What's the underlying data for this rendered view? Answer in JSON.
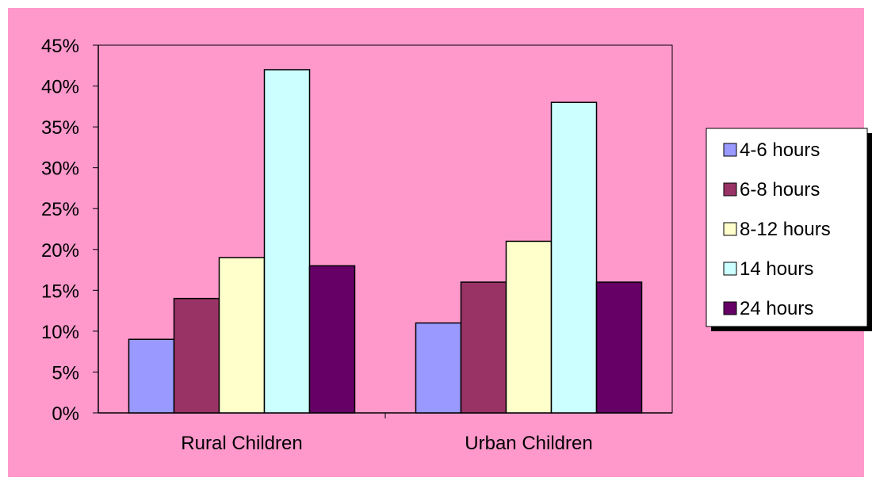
{
  "colors": {
    "chart_area": "#FF99CC",
    "plot_area": "#FF99CC",
    "legend_bg": "#FFFFFF",
    "axis": "#000000"
  },
  "legend": {
    "position": "right"
  },
  "chart_data": {
    "type": "bar",
    "categories": [
      "Rural Children",
      "Urban Children"
    ],
    "series": [
      {
        "name": "4-6 hours",
        "color": "#9999FF",
        "values": [
          9,
          11
        ]
      },
      {
        "name": "6-8 hours",
        "color": "#993366",
        "values": [
          14,
          16
        ]
      },
      {
        "name": "8-12 hours",
        "color": "#FFFFCC",
        "values": [
          19,
          21
        ]
      },
      {
        "name": "14 hours",
        "color": "#CCFFFF",
        "values": [
          42,
          38
        ]
      },
      {
        "name": "24 hours",
        "color": "#660066",
        "values": [
          18,
          16
        ]
      }
    ],
    "ylim": [
      0,
      45
    ],
    "yticks": [
      0,
      5,
      10,
      15,
      20,
      25,
      30,
      35,
      40,
      45
    ],
    "ytick_labels": [
      "0%",
      "5%",
      "10%",
      "15%",
      "20%",
      "25%",
      "30%",
      "35%",
      "40%",
      "45%"
    ],
    "grid": false,
    "title": "",
    "xlabel": "",
    "ylabel": ""
  }
}
